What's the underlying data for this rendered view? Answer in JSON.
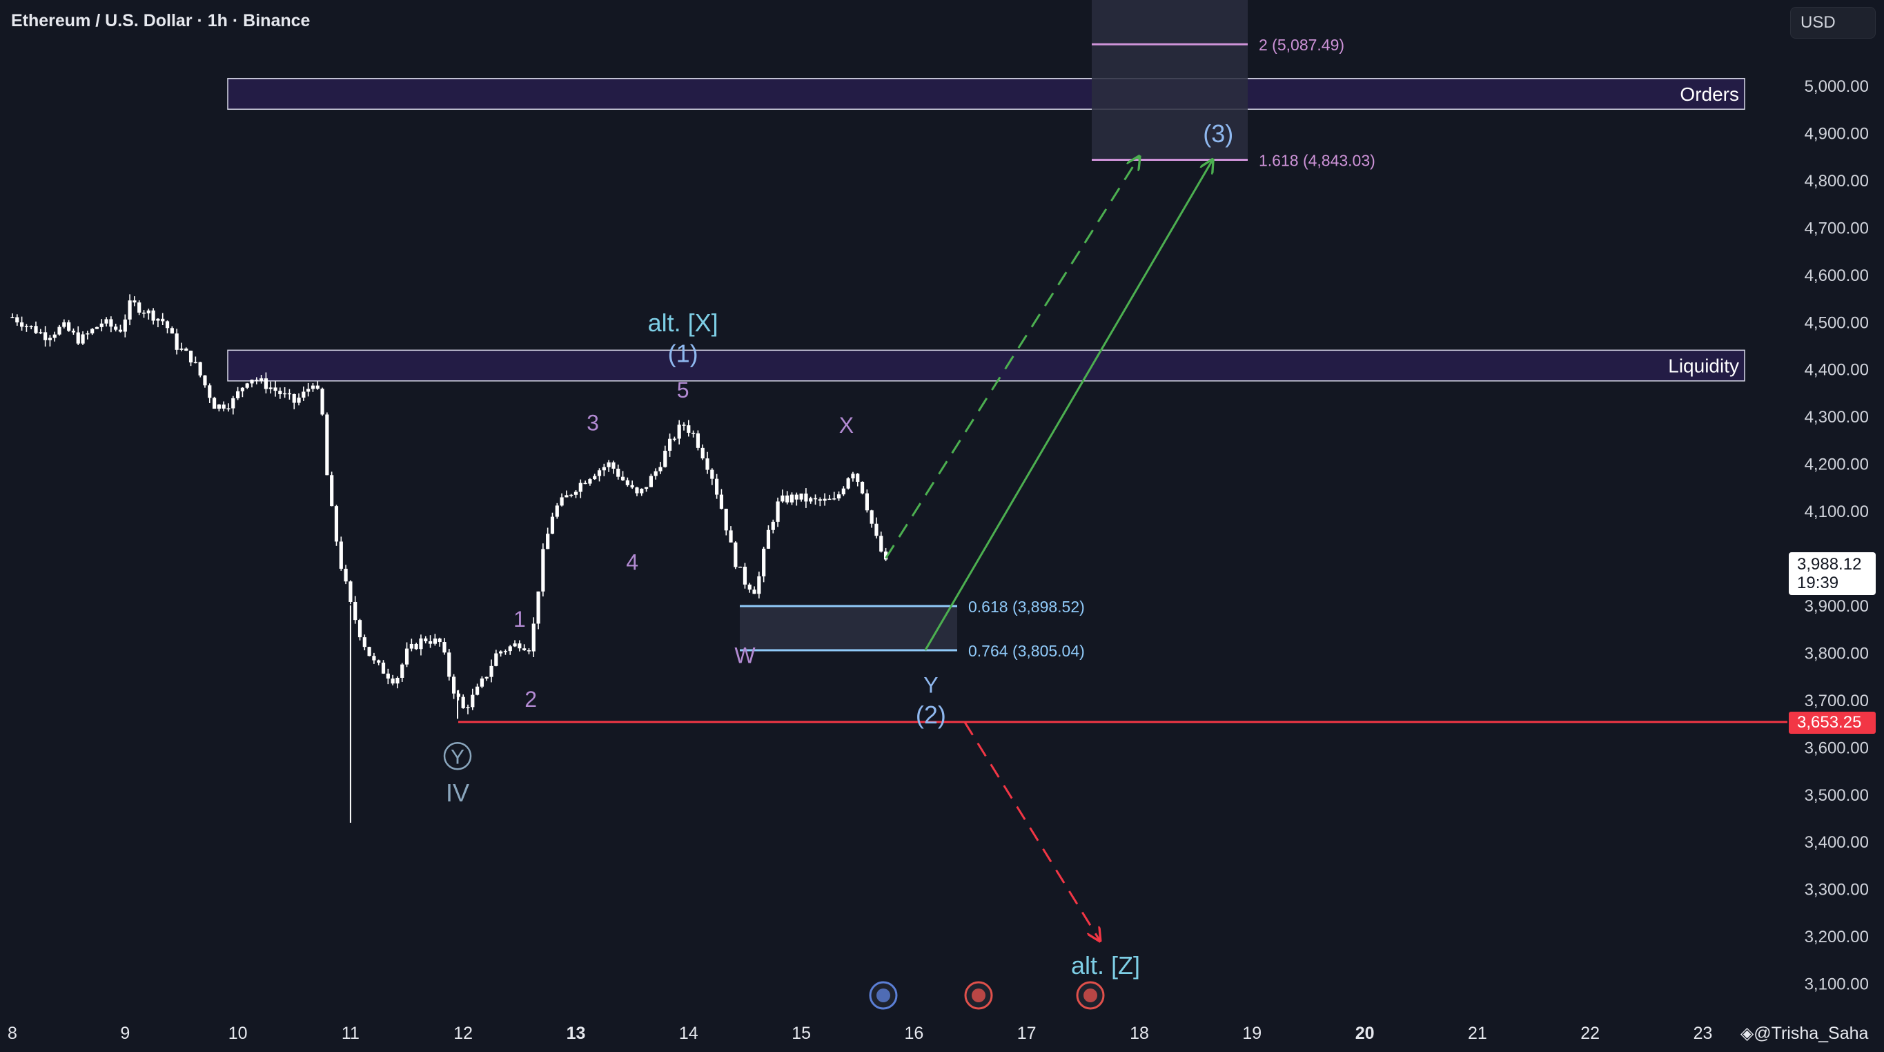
{
  "header": {
    "title": "Ethereum / U.S. Dollar · 1h · Binance",
    "currency_button": "USD"
  },
  "watermark": "@Trisha_Saha",
  "price_labels": {
    "last_price": "3,988.12",
    "countdown": "19:39",
    "stop_level": "3,653.25"
  },
  "colors": {
    "background": "#131722",
    "candles": "#ffffff",
    "zone_fill": "#231c45",
    "fib_upper": "#ce93d8",
    "fib_lower": "#90caf9",
    "stop_line": "#f23645",
    "bull_arrow": "#4caf50",
    "bear_arrow": "#f23645",
    "wave_purple": "#b28ad2",
    "wave_cyan": "#7ecfe6"
  },
  "chart_data": {
    "type": "candlestick",
    "title": "Ethereum / U.S. Dollar · 1h · Binance",
    "y_unit": "USD",
    "ylim": [
      3050,
      5180
    ],
    "x_ticks": [
      "8",
      "9",
      "10",
      "11",
      "12",
      "13",
      "14",
      "15",
      "16",
      "17",
      "18",
      "19",
      "20",
      "21",
      "22",
      "23"
    ],
    "x_ticks_bold": [
      "13",
      "20"
    ],
    "y_ticks": [
      "3,100.00",
      "3,200.00",
      "3,300.00",
      "3,400.00",
      "3,500.00",
      "3,600.00",
      "3,700.00",
      "3,800.00",
      "3,900.00",
      "4,000.00",
      "4,100.00",
      "4,200.00",
      "4,300.00",
      "4,400.00",
      "4,500.00",
      "4,600.00",
      "4,700.00",
      "4,800.00",
      "4,900.00",
      "5,000.00"
    ],
    "y_tick_values": [
      3100,
      3200,
      3300,
      3400,
      3500,
      3600,
      3700,
      3800,
      3900,
      4000,
      4100,
      4200,
      4300,
      4400,
      4500,
      4600,
      4700,
      4800,
      4900,
      5000
    ],
    "price_path": [
      [
        8.0,
        4510
      ],
      [
        8.15,
        4490
      ],
      [
        8.3,
        4470
      ],
      [
        8.45,
        4490
      ],
      [
        8.6,
        4460
      ],
      [
        8.8,
        4500
      ],
      [
        8.95,
        4480
      ],
      [
        9.05,
        4540
      ],
      [
        9.2,
        4520
      ],
      [
        9.35,
        4500
      ],
      [
        9.45,
        4450
      ],
      [
        9.6,
        4420
      ],
      [
        9.8,
        4320
      ],
      [
        9.95,
        4330
      ],
      [
        10.1,
        4385
      ],
      [
        10.3,
        4360
      ],
      [
        10.5,
        4330
      ],
      [
        10.6,
        4350
      ],
      [
        10.68,
        4380
      ],
      [
        10.75,
        4300
      ],
      [
        10.8,
        4150
      ],
      [
        10.9,
        4000
      ],
      [
        11.0,
        3900
      ],
      [
        11.1,
        3830
      ],
      [
        11.2,
        3780
      ],
      [
        11.3,
        3760
      ],
      [
        11.4,
        3740
      ],
      [
        11.5,
        3800
      ],
      [
        11.65,
        3830
      ],
      [
        11.8,
        3820
      ],
      [
        11.9,
        3730
      ],
      [
        12.0,
        3680
      ],
      [
        12.1,
        3710
      ],
      [
        12.2,
        3750
      ],
      [
        12.3,
        3800
      ],
      [
        12.5,
        3820
      ],
      [
        12.6,
        3810
      ],
      [
        12.7,
        4000
      ],
      [
        12.8,
        4100
      ],
      [
        13.0,
        4150
      ],
      [
        13.15,
        4180
      ],
      [
        13.3,
        4200
      ],
      [
        13.4,
        4170
      ],
      [
        13.55,
        4130
      ],
      [
        13.7,
        4180
      ],
      [
        13.85,
        4250
      ],
      [
        13.95,
        4285
      ],
      [
        14.05,
        4260
      ],
      [
        14.2,
        4180
      ],
      [
        14.3,
        4100
      ],
      [
        14.4,
        4000
      ],
      [
        14.5,
        3950
      ],
      [
        14.6,
        3930
      ],
      [
        14.7,
        4050
      ],
      [
        14.8,
        4120
      ],
      [
        14.95,
        4130
      ],
      [
        15.1,
        4120
      ],
      [
        15.3,
        4120
      ],
      [
        15.45,
        4190
      ],
      [
        15.55,
        4140
      ],
      [
        15.65,
        4050
      ],
      [
        15.75,
        3988
      ]
    ],
    "price_extremes": {
      "wick_low": 3440,
      "day12_low": 3660
    },
    "zones": [
      {
        "label": "Orders",
        "low": 4950,
        "high": 5015
      },
      {
        "label": "Liquidity",
        "low": 4375,
        "high": 4440
      }
    ],
    "fib_levels": [
      {
        "label": "2 (5,087.49)",
        "value": 5087.49
      },
      {
        "label": "1.618 (4,843.03)",
        "value": 4843.03
      },
      {
        "label": "0.618 (3,898.52)",
        "value": 3898.52
      },
      {
        "label": "0.764 (3,805.04)",
        "value": 3805.04
      }
    ],
    "stop_level": 3653.25,
    "waves": [
      {
        "label": "alt. [X]",
        "x": 13.95,
        "y": 4480,
        "color": "cyan"
      },
      {
        "label": "(1)",
        "x": 13.95,
        "y": 4415,
        "color": "blue"
      },
      {
        "label": "5",
        "x": 13.95,
        "y": 4340,
        "color": "purple"
      },
      {
        "label": "3",
        "x": 13.15,
        "y": 4270,
        "color": "purple"
      },
      {
        "label": "X",
        "x": 15.4,
        "y": 4265,
        "color": "purple"
      },
      {
        "label": "4",
        "x": 13.5,
        "y": 3975,
        "color": "purple"
      },
      {
        "label": "1",
        "x": 12.5,
        "y": 3855,
        "color": "purple"
      },
      {
        "label": "2",
        "x": 12.6,
        "y": 3685,
        "color": "purple"
      },
      {
        "label": "W",
        "x": 14.5,
        "y": 3778,
        "color": "purple"
      },
      {
        "label": "Y",
        "x": 16.15,
        "y": 3715,
        "color": "blue"
      },
      {
        "label": "(2)",
        "x": 16.15,
        "y": 3650,
        "color": "blue"
      },
      {
        "label": "(3)",
        "x": 18.7,
        "y": 4880,
        "color": "blue"
      },
      {
        "label": "IV",
        "x": 11.95,
        "y": 3485,
        "color": "slate"
      },
      {
        "label": "alt. [Z]",
        "x": 17.7,
        "y": 3120,
        "color": "cyan"
      }
    ],
    "circled_label": {
      "label": "Y",
      "x": 11.95,
      "y": 3565
    },
    "projections": [
      {
        "type": "bull-dashed",
        "from": [
          15.75,
          4000
        ],
        "to": [
          18.0,
          4850
        ]
      },
      {
        "type": "bull-solid",
        "from": [
          16.1,
          3805
        ],
        "to": [
          18.65,
          4843
        ]
      },
      {
        "type": "bear-dashed",
        "from": [
          16.45,
          3653
        ],
        "to": [
          17.65,
          3190
        ]
      }
    ]
  }
}
